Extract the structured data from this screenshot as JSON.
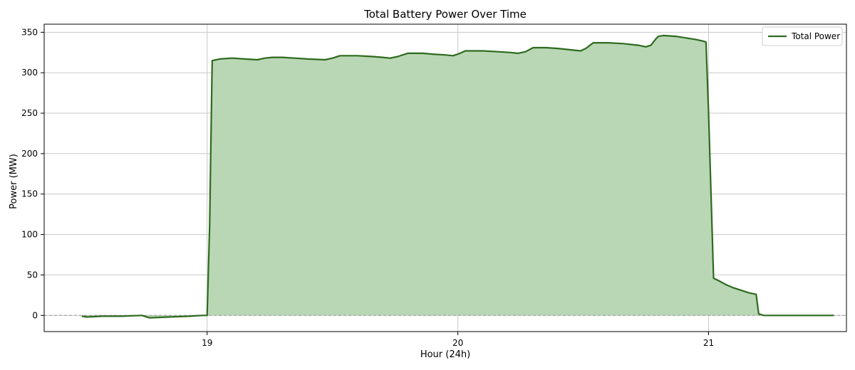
{
  "chart_data": {
    "type": "area",
    "title": "Total Battery Power Over Time",
    "xlabel": "Hour (24h)",
    "ylabel": "Power (MW)",
    "xlim": [
      18.35,
      21.55
    ],
    "ylim": [
      -20,
      360
    ],
    "xticks": [
      19,
      20,
      21
    ],
    "yticks": [
      0,
      50,
      100,
      150,
      200,
      250,
      300,
      350
    ],
    "grid": true,
    "legend": {
      "position": "top-right",
      "entries": [
        "Total Power"
      ]
    },
    "zero_line": true,
    "colors": {
      "line": "#2e6a1e",
      "fill": "#b9d7b5",
      "grid": "#c8c8c8",
      "zero_line": "#9a9a9a",
      "axes": "#000000"
    },
    "series": [
      {
        "name": "Total Power",
        "x": [
          18.5,
          18.52,
          18.58,
          18.66,
          18.74,
          18.77,
          18.85,
          18.93,
          18.98,
          19.0,
          19.01,
          19.02,
          19.05,
          19.1,
          19.15,
          19.2,
          19.23,
          19.26,
          19.3,
          19.35,
          19.4,
          19.47,
          19.5,
          19.53,
          19.6,
          19.66,
          19.7,
          19.73,
          19.76,
          19.8,
          19.86,
          19.9,
          19.95,
          19.98,
          20.0,
          20.03,
          20.1,
          20.16,
          20.21,
          20.24,
          20.27,
          20.3,
          20.35,
          20.4,
          20.46,
          20.49,
          20.51,
          20.54,
          20.6,
          20.66,
          20.72,
          20.75,
          20.77,
          20.79,
          20.8,
          20.82,
          20.87,
          20.91,
          20.95,
          20.98,
          20.99,
          21.0,
          21.02,
          21.04,
          21.07,
          21.1,
          21.16,
          21.19,
          21.2,
          21.22,
          21.3,
          21.4,
          21.5
        ],
        "values": [
          -1,
          -2,
          -1,
          -1,
          0,
          -3,
          -2,
          -1,
          0,
          0,
          110,
          315,
          317,
          318,
          317,
          316,
          318,
          319,
          319,
          318,
          317,
          316,
          318,
          321,
          321,
          320,
          319,
          318,
          320,
          324,
          324,
          323,
          322,
          321,
          323,
          327,
          327,
          326,
          325,
          324,
          326,
          331,
          331,
          330,
          328,
          327,
          330,
          337,
          337,
          336,
          334,
          332,
          334,
          342,
          345,
          346,
          345,
          343,
          341,
          339,
          338,
          250,
          46,
          43,
          38,
          34,
          28,
          26,
          2,
          0,
          0,
          0,
          0
        ]
      }
    ]
  }
}
